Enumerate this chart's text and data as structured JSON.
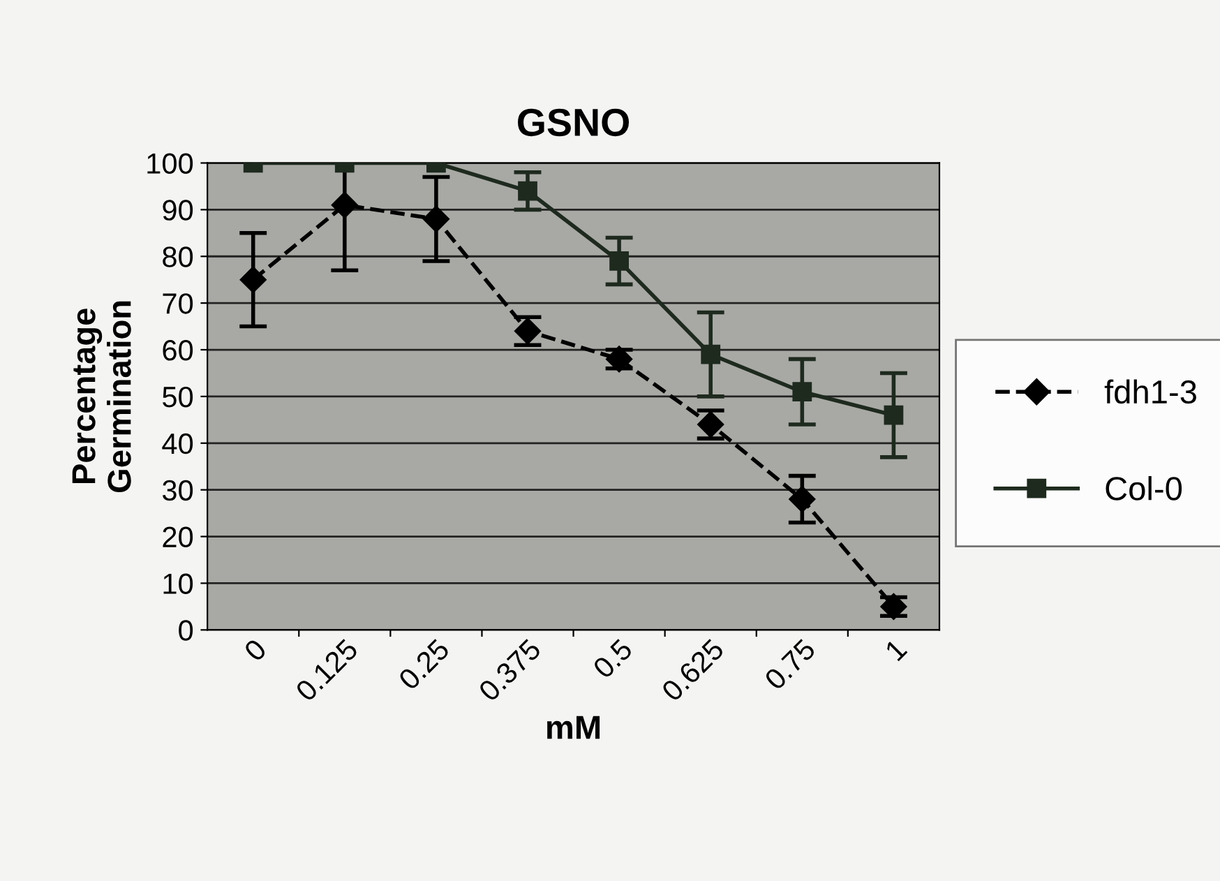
{
  "chart_data": {
    "type": "line",
    "title": "GSNO",
    "xlabel": "mM",
    "ylabel": "Percentage\nGermination",
    "categories": [
      "0",
      "0.125",
      "0.25",
      "0.375",
      "0.5",
      "0.625",
      "0.75",
      "1"
    ],
    "series": [
      {
        "name": "fdh1-3",
        "color": "#000000",
        "marker": "diamond",
        "line_style": "dashed",
        "values": [
          75,
          91,
          88,
          64,
          58,
          44,
          28,
          5
        ],
        "errors": [
          10,
          14,
          9,
          3,
          2,
          3,
          5,
          2
        ]
      },
      {
        "name": "Col-0",
        "color": "#1f2a1f",
        "marker": "square",
        "line_style": "solid",
        "values": [
          100,
          100,
          100,
          94,
          79,
          59,
          51,
          46
        ],
        "errors": [
          null,
          null,
          null,
          4,
          5,
          9,
          7,
          9
        ]
      }
    ],
    "ylim": [
      0,
      100
    ],
    "yticks": [
      0,
      10,
      20,
      30,
      40,
      50,
      60,
      70,
      80,
      90,
      100
    ],
    "grid": "y",
    "legend": "right"
  }
}
